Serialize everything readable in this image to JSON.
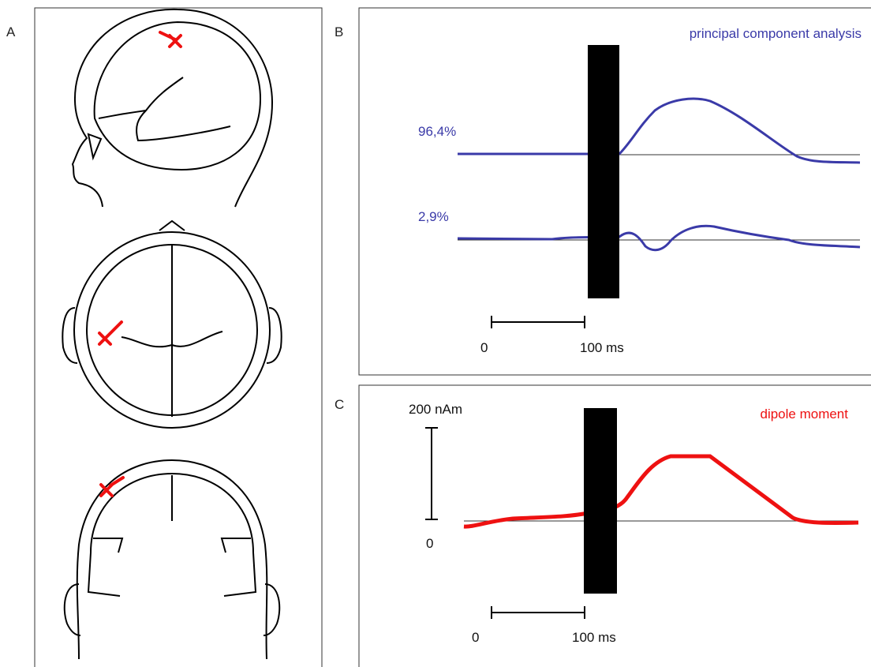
{
  "panels": {
    "a": {
      "label": "A"
    },
    "b": {
      "label": "B",
      "title": "principal component analysis",
      "component_1": "96,4%",
      "component_2": "2,9%",
      "scale_start": "0",
      "scale_end": "100 ms"
    },
    "c": {
      "label": "C",
      "title": "dipole moment",
      "amplitude_top": "200 nAm",
      "amplitude_bottom": "0",
      "scale_start": "0",
      "scale_end": "100 ms"
    }
  }
}
